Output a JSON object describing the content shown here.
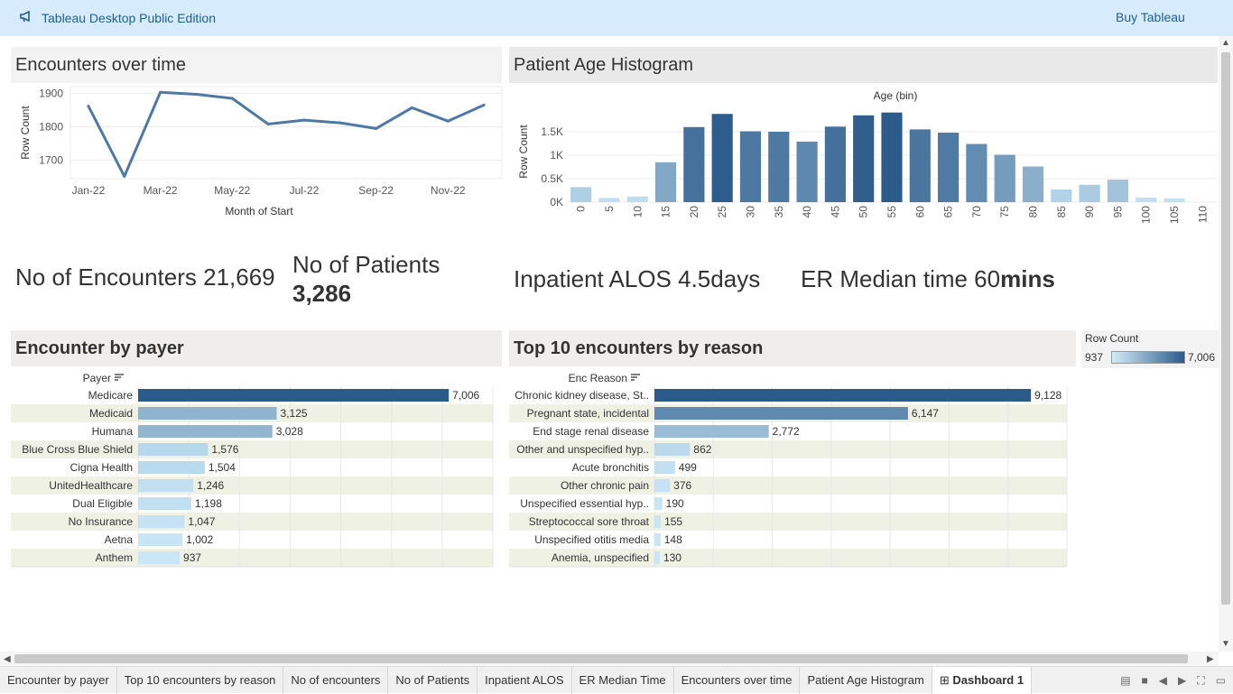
{
  "topbar": {
    "title": "Tableau Desktop Public Edition",
    "buy": "Buy Tableau"
  },
  "panels": {
    "enc_over_time": "Encounters over time",
    "age_hist": "Patient Age Histogram",
    "enc_by_payer": "Encounter by payer",
    "top10_reason": "Top 10 encounters by reason"
  },
  "kpis": {
    "encounters": "No of Encounters 21,669",
    "patients_label": "No of Patients",
    "patients_value": "3,286",
    "alos": "Inpatient ALOS 4.5days",
    "er_prefix": "ER Median time 60",
    "er_suffix": "mins"
  },
  "legend": {
    "title": "Row Count",
    "min": "937",
    "max": "7,006"
  },
  "colors": {
    "dark": "#2b5b8b",
    "light": "#b9ddf2",
    "line": "#4e79a7",
    "band": "#eef1e4"
  },
  "chart_data": [
    {
      "type": "line",
      "title": "Encounters over time",
      "xlabel": "Month of Start",
      "ylabel": "Row Count",
      "x": [
        "Jan-22",
        "Feb-22",
        "Mar-22",
        "Apr-22",
        "May-22",
        "Jun-22",
        "Jul-22",
        "Aug-22",
        "Sep-22",
        "Oct-22",
        "Nov-22",
        "Dec-22"
      ],
      "x_ticks": [
        "Jan-22",
        "Mar-22",
        "May-22",
        "Jul-22",
        "Sep-22",
        "Nov-22"
      ],
      "values": [
        1862,
        1652,
        1903,
        1897,
        1885,
        1808,
        1820,
        1812,
        1795,
        1857,
        1817,
        1865
      ],
      "y_ticks": [
        "1700",
        "1800",
        "1900"
      ],
      "ylim": [
        1645,
        1920
      ]
    },
    {
      "type": "bar",
      "title": "Patient Age Histogram",
      "xlabel": "Age (bin)",
      "ylabel": "Row Count",
      "categories": [
        "0",
        "5",
        "10",
        "15",
        "20",
        "25",
        "30",
        "35",
        "40",
        "45",
        "50",
        "55",
        "60",
        "65",
        "70",
        "75",
        "80",
        "85",
        "90",
        "95",
        "100",
        "105",
        "110"
      ],
      "values": [
        320,
        90,
        120,
        850,
        1600,
        1880,
        1510,
        1500,
        1290,
        1610,
        1850,
        1910,
        1550,
        1480,
        1240,
        1010,
        760,
        270,
        370,
        480,
        100,
        80,
        0
      ],
      "y_ticks": [
        "0K",
        "0.5K",
        "1K",
        "1.5K"
      ],
      "ylim": [
        0,
        2000
      ]
    },
    {
      "type": "bar",
      "title": "Encounter by payer",
      "ylabel": "Payer",
      "categories": [
        "Medicare",
        "Medicaid",
        "Humana",
        "Blue Cross Blue Shield",
        "Cigna Health",
        "UnitedHealthcare",
        "Dual Eligible",
        "No Insurance",
        "Aetna",
        "Anthem"
      ],
      "values": [
        7006,
        3125,
        3028,
        1576,
        1504,
        1246,
        1198,
        1047,
        1002,
        937
      ],
      "labels": [
        "7,006",
        "3,125",
        "3,028",
        "1,576",
        "1,504",
        "1,246",
        "1,198",
        "1,047",
        "1,002",
        "937"
      ],
      "xlim": [
        0,
        8000
      ]
    },
    {
      "type": "bar",
      "title": "Top 10 encounters by reason",
      "ylabel": "Enc Reason",
      "categories": [
        "Chronic kidney disease, St..",
        "Pregnant state, incidental",
        "End stage renal disease",
        "Other and unspecified hyp..",
        "Acute bronchitis",
        "Other chronic pain",
        "Unspecified essential hyp..",
        "Streptococcal sore throat",
        "Unspecified otitis media",
        "Anemia, unspecified"
      ],
      "values": [
        9128,
        6147,
        2772,
        862,
        499,
        376,
        190,
        155,
        148,
        130
      ],
      "labels": [
        "9,128",
        "6,147",
        "2,772",
        "862",
        "499",
        "376",
        "190",
        "155",
        "148",
        "130"
      ],
      "xlim": [
        0,
        10000
      ]
    }
  ],
  "tabs": [
    "Encounter by payer",
    "Top 10 encounters by reason",
    "No of encounters",
    "No of Patients",
    "Inpatient ALOS",
    "ER Median Time",
    "Encounters over time",
    "Patient Age Histogram",
    "Dashboard 1"
  ]
}
